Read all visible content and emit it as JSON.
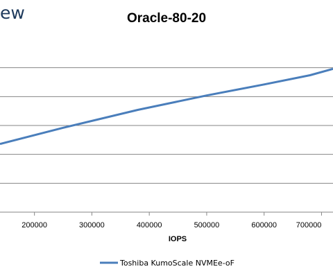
{
  "watermark": "ew",
  "chart_data": {
    "type": "line",
    "title": "Oracle-80-20",
    "xlabel": "IOPS",
    "ylabel": "",
    "x_ticks": [
      200000,
      300000,
      400000,
      500000,
      600000,
      700000
    ],
    "xlim": [
      140000,
      720000
    ],
    "ylim": [
      0,
      6
    ],
    "grid": true,
    "legend_position": "bottom",
    "series": [
      {
        "name": "Toshiba KumoScale NVMEe-oF",
        "color": "#4a7ebb",
        "x": [
          140000,
          250000,
          380000,
          500000,
          600000,
          680000,
          720000
        ],
        "y": [
          2.36,
          2.92,
          3.54,
          4.04,
          4.42,
          4.74,
          4.96
        ]
      }
    ]
  }
}
